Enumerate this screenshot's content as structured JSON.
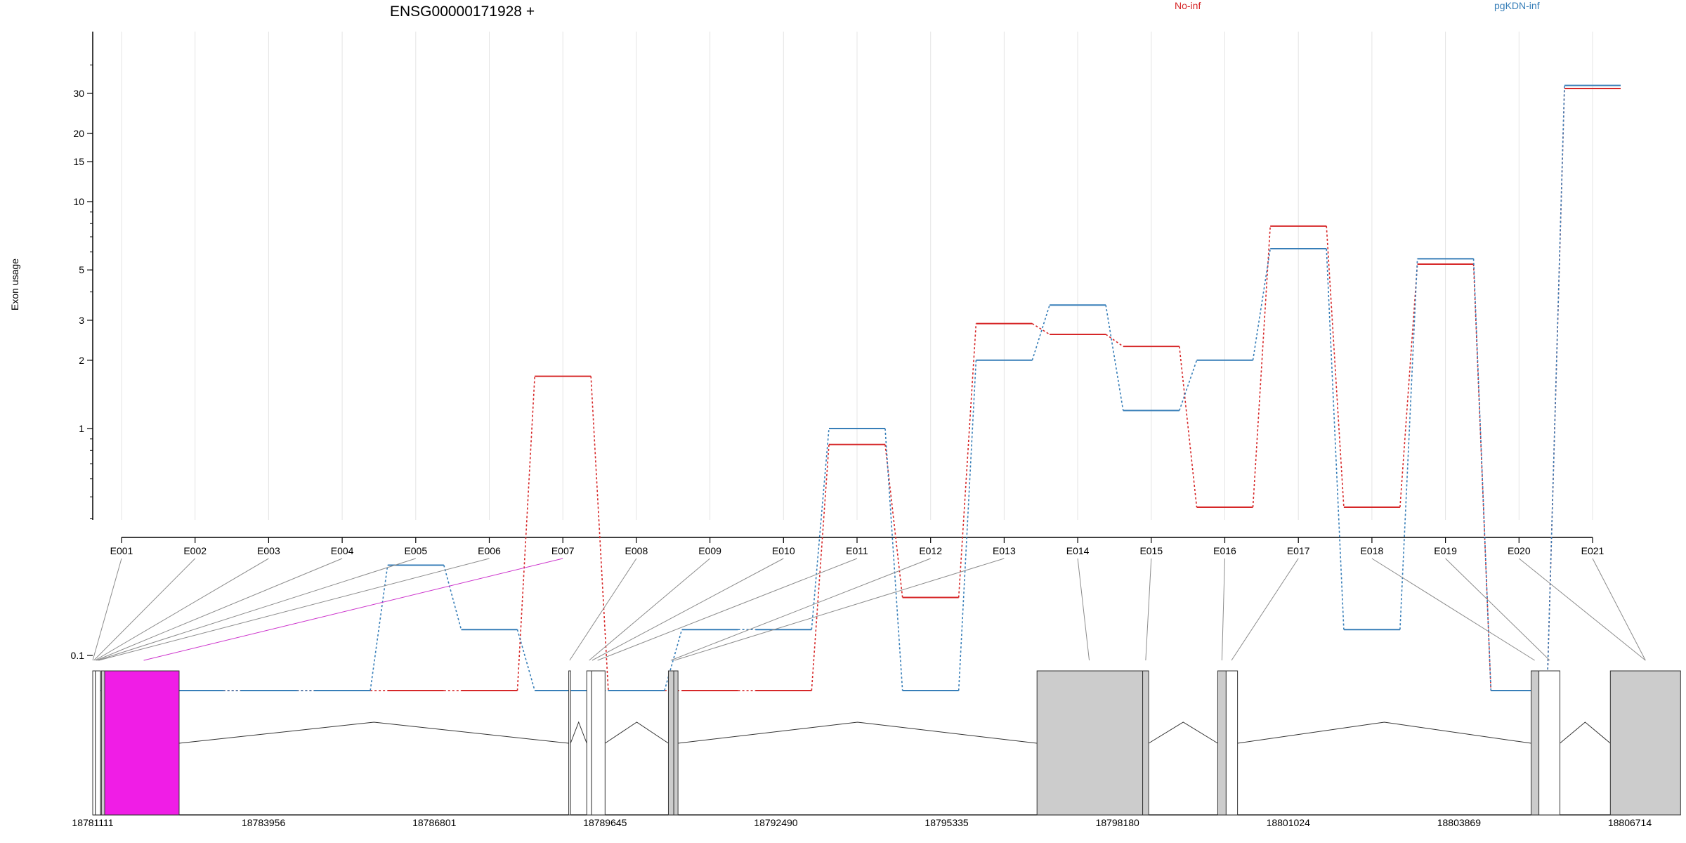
{
  "chart_data": {
    "type": "line",
    "title": "ENSG00000171928 +",
    "xlabel": "",
    "ylabel": "Exon usage",
    "y_scale": "log",
    "y_ticks": [
      0.1,
      1,
      2,
      3,
      5,
      10,
      15,
      20,
      30
    ],
    "y_tick_labels": [
      "0.1",
      "1",
      "2",
      "3",
      "5",
      "10",
      "15",
      "20",
      "30"
    ],
    "categories": [
      "E001",
      "E002",
      "E003",
      "E004",
      "E005",
      "E006",
      "E007",
      "E008",
      "E009",
      "E010",
      "E011",
      "E012",
      "E013",
      "E014",
      "E015",
      "E016",
      "E017",
      "E018",
      "E019",
      "E020",
      "E021"
    ],
    "legend_position": "top-right",
    "grid": "vertical, faint",
    "series": [
      {
        "name": "No-inf",
        "color": "#d62728",
        "values": [
          0.07,
          0.07,
          0.07,
          0.07,
          0.07,
          0.07,
          1.7,
          0.07,
          0.07,
          0.07,
          0.85,
          0.18,
          2.9,
          2.6,
          2.3,
          0.45,
          7.8,
          0.45,
          5.3,
          0.07,
          31.5
        ]
      },
      {
        "name": "pgKDN-inf",
        "color": "#377eb8",
        "values": [
          0.07,
          0.07,
          0.07,
          0.07,
          0.25,
          0.13,
          0.07,
          0.07,
          0.13,
          0.13,
          1.0,
          0.07,
          2.0,
          3.5,
          1.2,
          2.0,
          6.2,
          0.13,
          5.6,
          0.07,
          32.5
        ]
      }
    ],
    "gene_model": {
      "genomic_ticks": [
        "18781111",
        "18783956",
        "18786801",
        "18789645",
        "18792490",
        "18795335",
        "18798180",
        "18801024",
        "18803869",
        "18806714"
      ],
      "genomic_range": [
        18781111,
        18806714
      ],
      "exon_boxes": [
        {
          "start": 18781111,
          "end": 18781155,
          "fill": "#ffffff"
        },
        {
          "start": 18781155,
          "end": 18781240,
          "fill": "#ffffff"
        },
        {
          "start": 18781255,
          "end": 18781310,
          "fill": "#cccccc"
        },
        {
          "start": 18781310,
          "end": 18782550,
          "fill": "#f01de6"
        },
        {
          "start": 18789040,
          "end": 18789070,
          "fill": "#ffffff"
        },
        {
          "start": 18789340,
          "end": 18789420,
          "fill": "#ffffff"
        },
        {
          "start": 18789420,
          "end": 18789645,
          "fill": "#ffffff"
        },
        {
          "start": 18790700,
          "end": 18790790,
          "fill": "#cccccc"
        },
        {
          "start": 18790790,
          "end": 18790860,
          "fill": "#cccccc"
        },
        {
          "start": 18796840,
          "end": 18798600,
          "fill": "#cccccc"
        },
        {
          "start": 18798600,
          "end": 18798700,
          "fill": "#cccccc"
        },
        {
          "start": 18799850,
          "end": 18799990,
          "fill": "#cccccc"
        },
        {
          "start": 18799990,
          "end": 18800180,
          "fill": "#ffffff"
        },
        {
          "start": 18805070,
          "end": 18805200,
          "fill": "#cccccc"
        },
        {
          "start": 18805200,
          "end": 18805550,
          "fill": "#ffffff"
        },
        {
          "start": 18806390,
          "end": 18807560,
          "fill": "#cccccc"
        }
      ],
      "introns": [
        [
          18782550,
          18789040
        ],
        [
          18789070,
          18789340
        ],
        [
          18789645,
          18790700
        ],
        [
          18790860,
          18796840
        ],
        [
          18798700,
          18799850
        ],
        [
          18800180,
          18805070
        ],
        [
          18805550,
          18806390
        ]
      ],
      "exon_links": [
        {
          "exon": "E001",
          "pos": 18781111
        },
        {
          "exon": "E002",
          "pos": 18781130
        },
        {
          "exon": "E003",
          "pos": 18781150
        },
        {
          "exon": "E004",
          "pos": 18781170
        },
        {
          "exon": "E005",
          "pos": 18781190
        },
        {
          "exon": "E006",
          "pos": 18781210
        },
        {
          "exon": "E007",
          "pos": 18781960,
          "highlight": true
        },
        {
          "exon": "E008",
          "pos": 18789055
        },
        {
          "exon": "E009",
          "pos": 18789380
        },
        {
          "exon": "E010",
          "pos": 18789430
        },
        {
          "exon": "E011",
          "pos": 18789520
        },
        {
          "exon": "E012",
          "pos": 18790740
        },
        {
          "exon": "E013",
          "pos": 18790800
        },
        {
          "exon": "E014",
          "pos": 18797710
        },
        {
          "exon": "E015",
          "pos": 18798650
        },
        {
          "exon": "E016",
          "pos": 18799920
        },
        {
          "exon": "E017",
          "pos": 18800080
        },
        {
          "exon": "E018",
          "pos": 18805130
        },
        {
          "exon": "E019",
          "pos": 18805380
        },
        {
          "exon": "E020",
          "pos": 18806975
        },
        {
          "exon": "E021",
          "pos": 18806975
        }
      ]
    }
  }
}
